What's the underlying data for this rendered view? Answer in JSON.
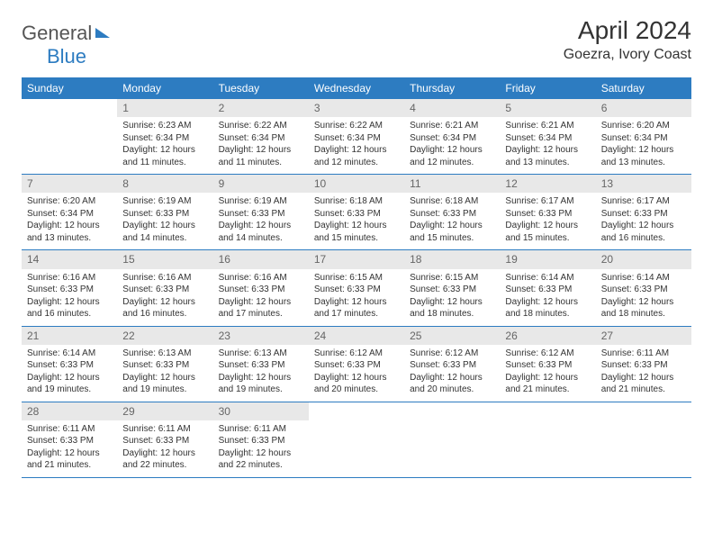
{
  "logo": {
    "word1": "General",
    "word2": "Blue"
  },
  "title": "April 2024",
  "location": "Goezra, Ivory Coast",
  "dayHeaders": [
    "Sunday",
    "Monday",
    "Tuesday",
    "Wednesday",
    "Thursday",
    "Friday",
    "Saturday"
  ],
  "colors": {
    "headerBg": "#2d7cc1",
    "headerText": "#ffffff",
    "dayNumBg": "#e8e8e8",
    "dayNumText": "#666666",
    "bodyText": "#333333",
    "rowBorder": "#2d7cc1",
    "logoGray": "#555555",
    "logoBlue": "#2d7cc1"
  },
  "typography": {
    "titleSize": 28,
    "locationSize": 16,
    "headerSize": 12,
    "dayNumSize": 12,
    "cellSize": 10
  },
  "layout": {
    "columns": 7,
    "rows": 5,
    "startOffset": 1
  },
  "weeks": [
    [
      null,
      {
        "n": "1",
        "sr": "6:23 AM",
        "ss": "6:34 PM",
        "dl": "12 hours and 11 minutes."
      },
      {
        "n": "2",
        "sr": "6:22 AM",
        "ss": "6:34 PM",
        "dl": "12 hours and 11 minutes."
      },
      {
        "n": "3",
        "sr": "6:22 AM",
        "ss": "6:34 PM",
        "dl": "12 hours and 12 minutes."
      },
      {
        "n": "4",
        "sr": "6:21 AM",
        "ss": "6:34 PM",
        "dl": "12 hours and 12 minutes."
      },
      {
        "n": "5",
        "sr": "6:21 AM",
        "ss": "6:34 PM",
        "dl": "12 hours and 13 minutes."
      },
      {
        "n": "6",
        "sr": "6:20 AM",
        "ss": "6:34 PM",
        "dl": "12 hours and 13 minutes."
      }
    ],
    [
      {
        "n": "7",
        "sr": "6:20 AM",
        "ss": "6:34 PM",
        "dl": "12 hours and 13 minutes."
      },
      {
        "n": "8",
        "sr": "6:19 AM",
        "ss": "6:33 PM",
        "dl": "12 hours and 14 minutes."
      },
      {
        "n": "9",
        "sr": "6:19 AM",
        "ss": "6:33 PM",
        "dl": "12 hours and 14 minutes."
      },
      {
        "n": "10",
        "sr": "6:18 AM",
        "ss": "6:33 PM",
        "dl": "12 hours and 15 minutes."
      },
      {
        "n": "11",
        "sr": "6:18 AM",
        "ss": "6:33 PM",
        "dl": "12 hours and 15 minutes."
      },
      {
        "n": "12",
        "sr": "6:17 AM",
        "ss": "6:33 PM",
        "dl": "12 hours and 15 minutes."
      },
      {
        "n": "13",
        "sr": "6:17 AM",
        "ss": "6:33 PM",
        "dl": "12 hours and 16 minutes."
      }
    ],
    [
      {
        "n": "14",
        "sr": "6:16 AM",
        "ss": "6:33 PM",
        "dl": "12 hours and 16 minutes."
      },
      {
        "n": "15",
        "sr": "6:16 AM",
        "ss": "6:33 PM",
        "dl": "12 hours and 16 minutes."
      },
      {
        "n": "16",
        "sr": "6:16 AM",
        "ss": "6:33 PM",
        "dl": "12 hours and 17 minutes."
      },
      {
        "n": "17",
        "sr": "6:15 AM",
        "ss": "6:33 PM",
        "dl": "12 hours and 17 minutes."
      },
      {
        "n": "18",
        "sr": "6:15 AM",
        "ss": "6:33 PM",
        "dl": "12 hours and 18 minutes."
      },
      {
        "n": "19",
        "sr": "6:14 AM",
        "ss": "6:33 PM",
        "dl": "12 hours and 18 minutes."
      },
      {
        "n": "20",
        "sr": "6:14 AM",
        "ss": "6:33 PM",
        "dl": "12 hours and 18 minutes."
      }
    ],
    [
      {
        "n": "21",
        "sr": "6:14 AM",
        "ss": "6:33 PM",
        "dl": "12 hours and 19 minutes."
      },
      {
        "n": "22",
        "sr": "6:13 AM",
        "ss": "6:33 PM",
        "dl": "12 hours and 19 minutes."
      },
      {
        "n": "23",
        "sr": "6:13 AM",
        "ss": "6:33 PM",
        "dl": "12 hours and 19 minutes."
      },
      {
        "n": "24",
        "sr": "6:12 AM",
        "ss": "6:33 PM",
        "dl": "12 hours and 20 minutes."
      },
      {
        "n": "25",
        "sr": "6:12 AM",
        "ss": "6:33 PM",
        "dl": "12 hours and 20 minutes."
      },
      {
        "n": "26",
        "sr": "6:12 AM",
        "ss": "6:33 PM",
        "dl": "12 hours and 21 minutes."
      },
      {
        "n": "27",
        "sr": "6:11 AM",
        "ss": "6:33 PM",
        "dl": "12 hours and 21 minutes."
      }
    ],
    [
      {
        "n": "28",
        "sr": "6:11 AM",
        "ss": "6:33 PM",
        "dl": "12 hours and 21 minutes."
      },
      {
        "n": "29",
        "sr": "6:11 AM",
        "ss": "6:33 PM",
        "dl": "12 hours and 22 minutes."
      },
      {
        "n": "30",
        "sr": "6:11 AM",
        "ss": "6:33 PM",
        "dl": "12 hours and 22 minutes."
      },
      null,
      null,
      null,
      null
    ]
  ],
  "labels": {
    "sunrise": "Sunrise:",
    "sunset": "Sunset:",
    "daylight": "Daylight:"
  }
}
